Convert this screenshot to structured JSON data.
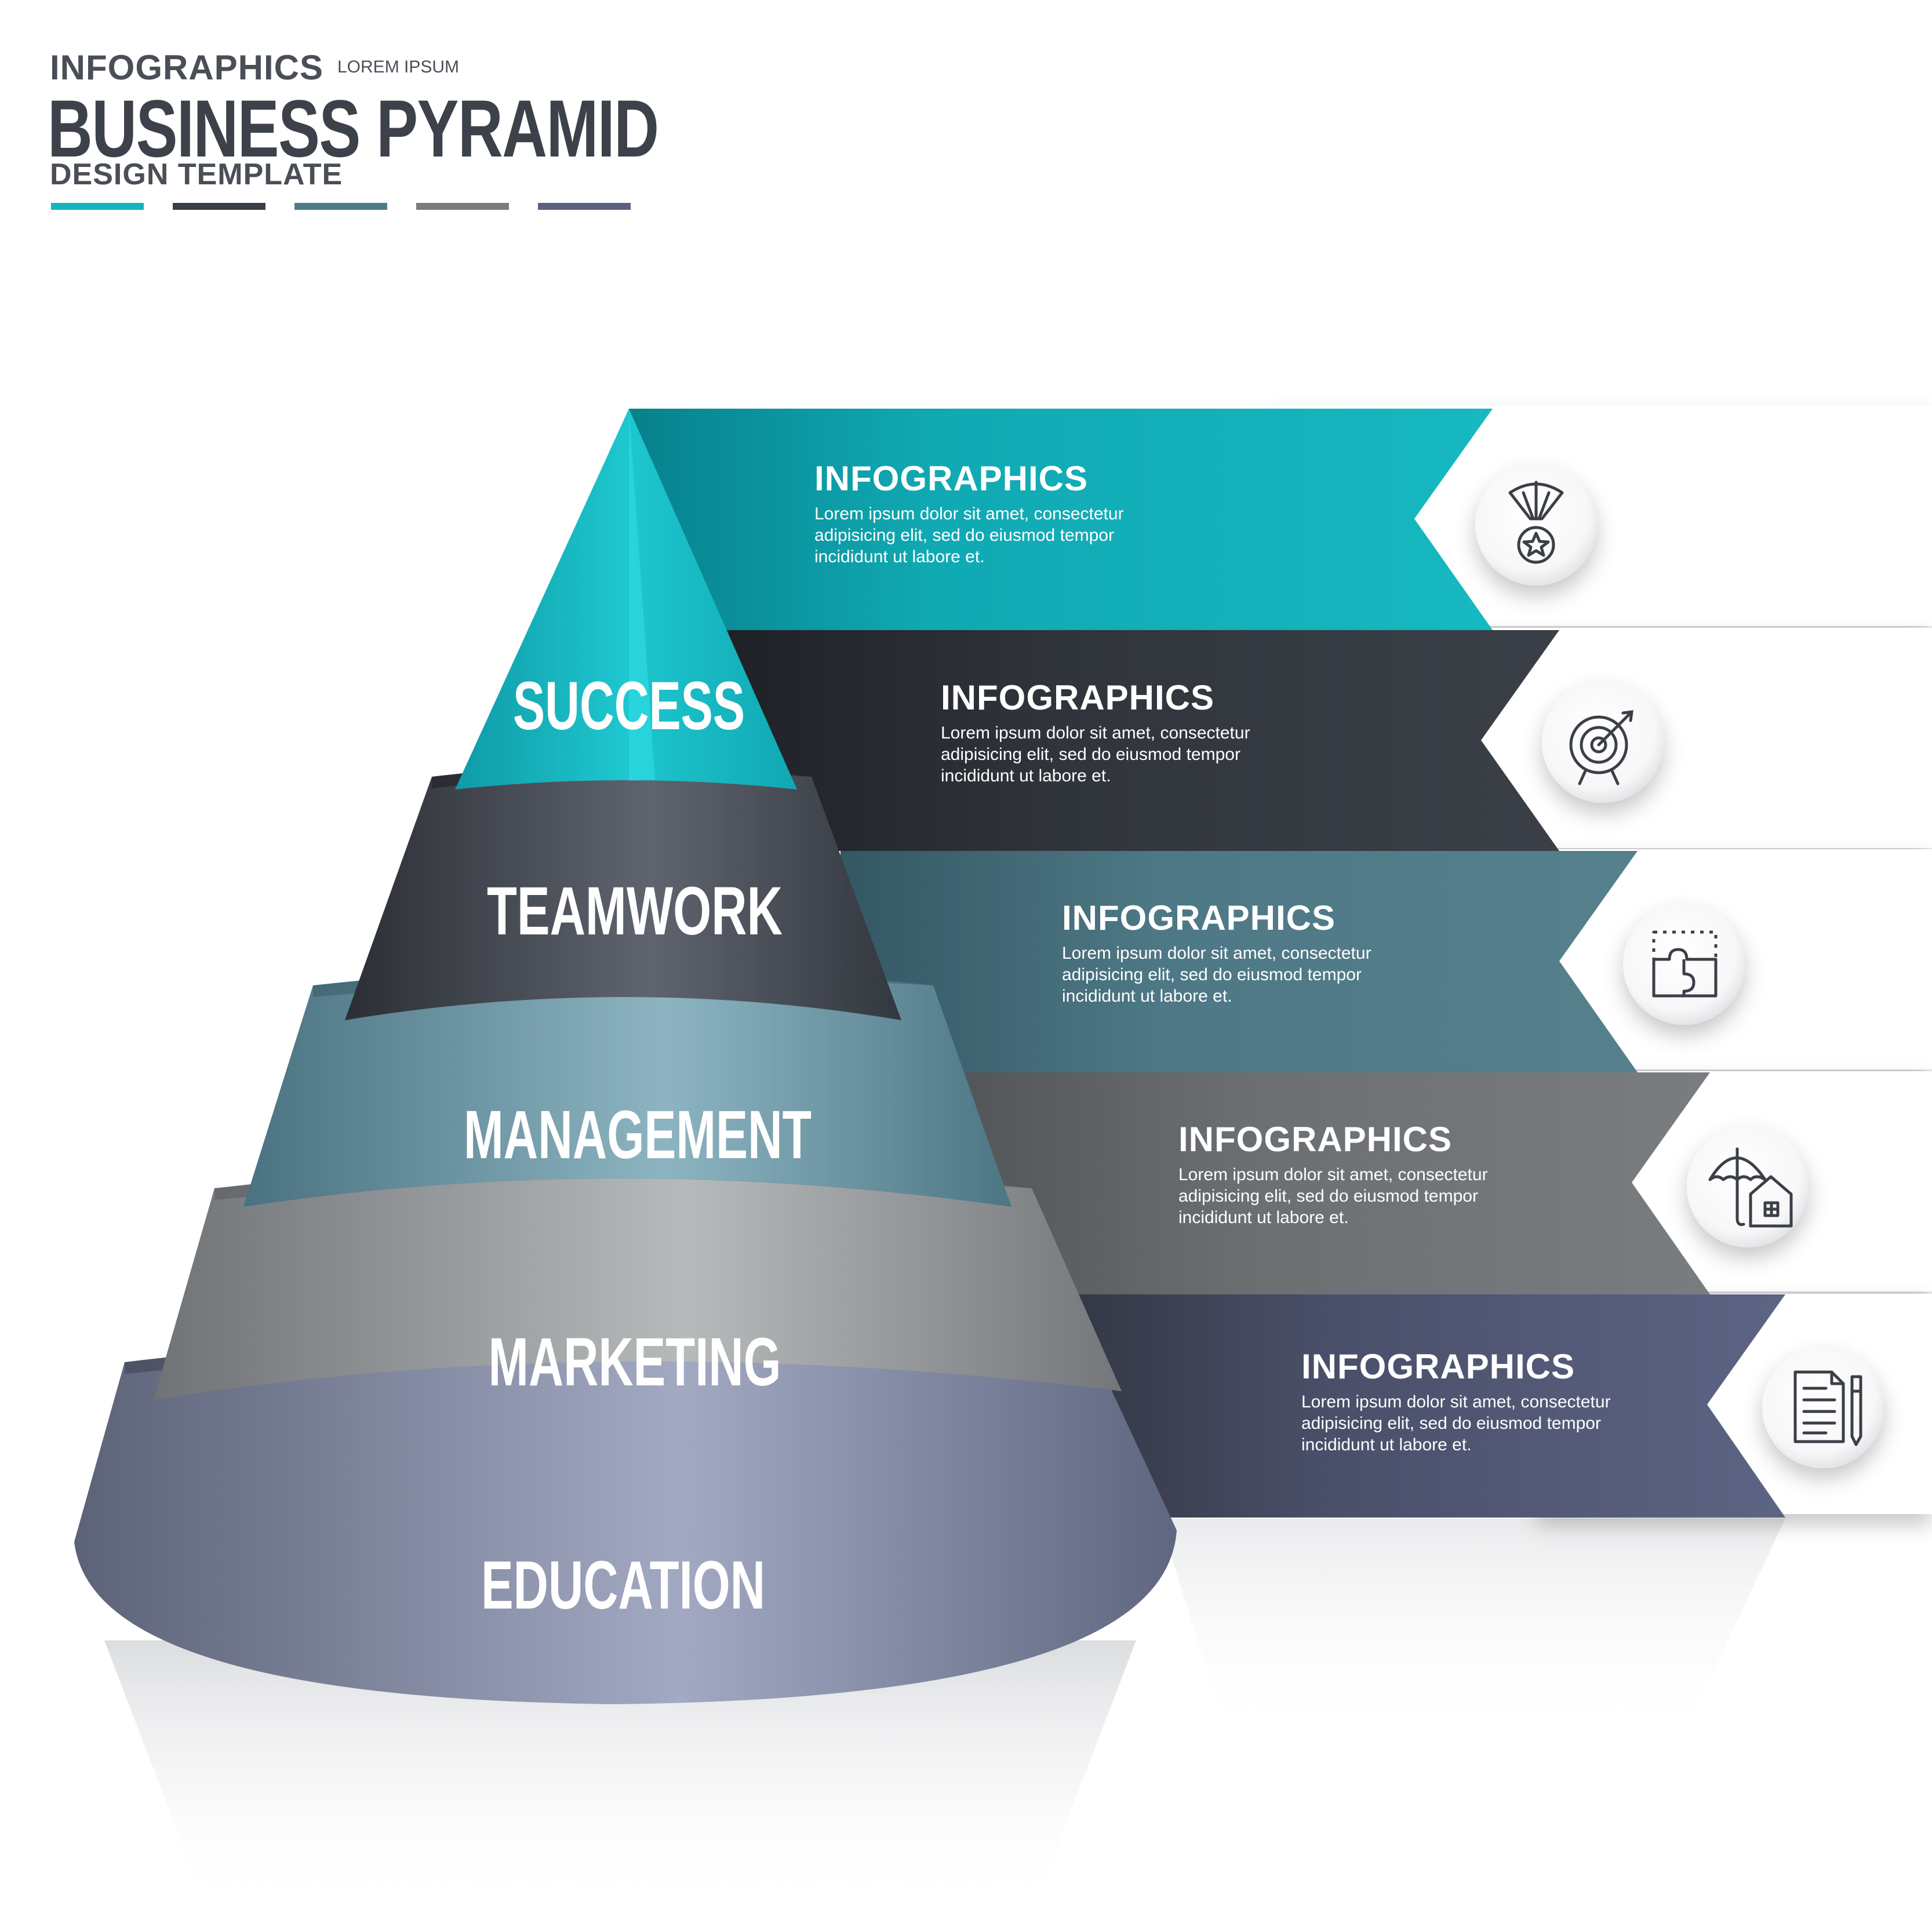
{
  "header": {
    "kicker": "INFOGRAPHICS",
    "tag": "LOREM IPSUM",
    "title": "BUSINESS PYRAMID",
    "subtitle": "DESIGN TEMPLATE"
  },
  "colors": {
    "tier1": "#16b4bf",
    "tier2": "#3a3e46",
    "tier3": "#4f7b88",
    "tier4": "#7a7d80",
    "tier5": "#5a6180"
  },
  "tiers": [
    {
      "label": "SUCCESS",
      "icon": "medal-icon",
      "title": "INFOGRAPHICS",
      "text": "Lorem ipsum dolor sit amet, consectetur adipisicing elit, sed do eiusmod tempor incididunt ut labore et."
    },
    {
      "label": "TEAMWORK",
      "icon": "target-icon",
      "title": "INFOGRAPHICS",
      "text": "Lorem ipsum dolor sit amet, consectetur adipisicing elit, sed do eiusmod tempor incididunt ut labore et."
    },
    {
      "label": "MANAGEMENT",
      "icon": "puzzle-icon",
      "title": "INFOGRAPHICS",
      "text": "Lorem ipsum dolor sit amet, consectetur adipisicing elit, sed do eiusmod tempor incididunt ut labore et."
    },
    {
      "label": "MARKETING",
      "icon": "umbrella-house-icon",
      "title": "INFOGRAPHICS",
      "text": "Lorem ipsum dolor sit amet, consectetur adipisicing elit, sed do eiusmod tempor incididunt ut labore et."
    },
    {
      "label": "EDUCATION",
      "icon": "document-pen-icon",
      "title": "INFOGRAPHICS",
      "text": "Lorem ipsum dolor sit amet, consectetur adipisicing elit, sed do eiusmod tempor incididunt ut labore et."
    }
  ]
}
